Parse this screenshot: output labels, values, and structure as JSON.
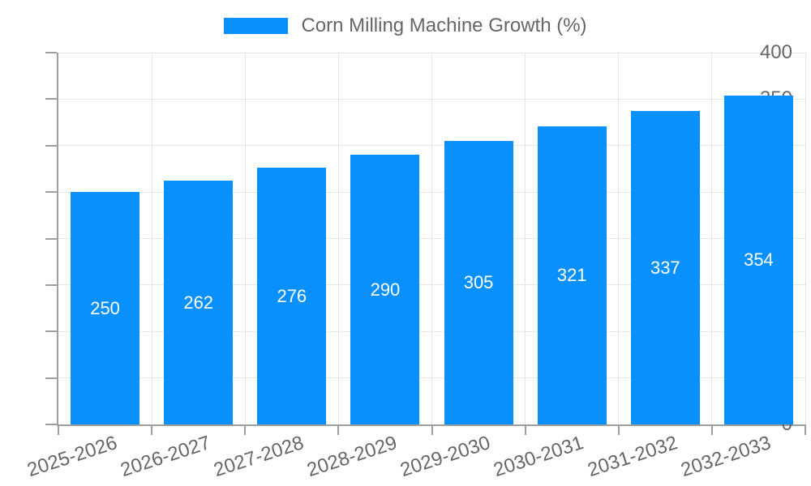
{
  "chart_data": {
    "type": "bar",
    "title": "",
    "legend": "Corn Milling Machine Growth (%)",
    "legend_position": "top-center",
    "categories": [
      "2025-2026",
      "2026-2027",
      "2027-2028",
      "2028-2029",
      "2029-2030",
      "2030-2031",
      "2031-2032",
      "2032-2033"
    ],
    "values": [
      250,
      262,
      276,
      290,
      305,
      321,
      337,
      354
    ],
    "xlabel": "",
    "ylabel": "",
    "ylim": [
      0,
      400
    ],
    "yticks": [
      0,
      50,
      100,
      150,
      200,
      250,
      300,
      350,
      400
    ],
    "grid": "both",
    "colors": {
      "bar": "#0890FC",
      "grid": "#E6E6E6",
      "axis": "#9E9E9E",
      "tick_text": "#666666",
      "value_label": "#FFFFFF"
    }
  }
}
